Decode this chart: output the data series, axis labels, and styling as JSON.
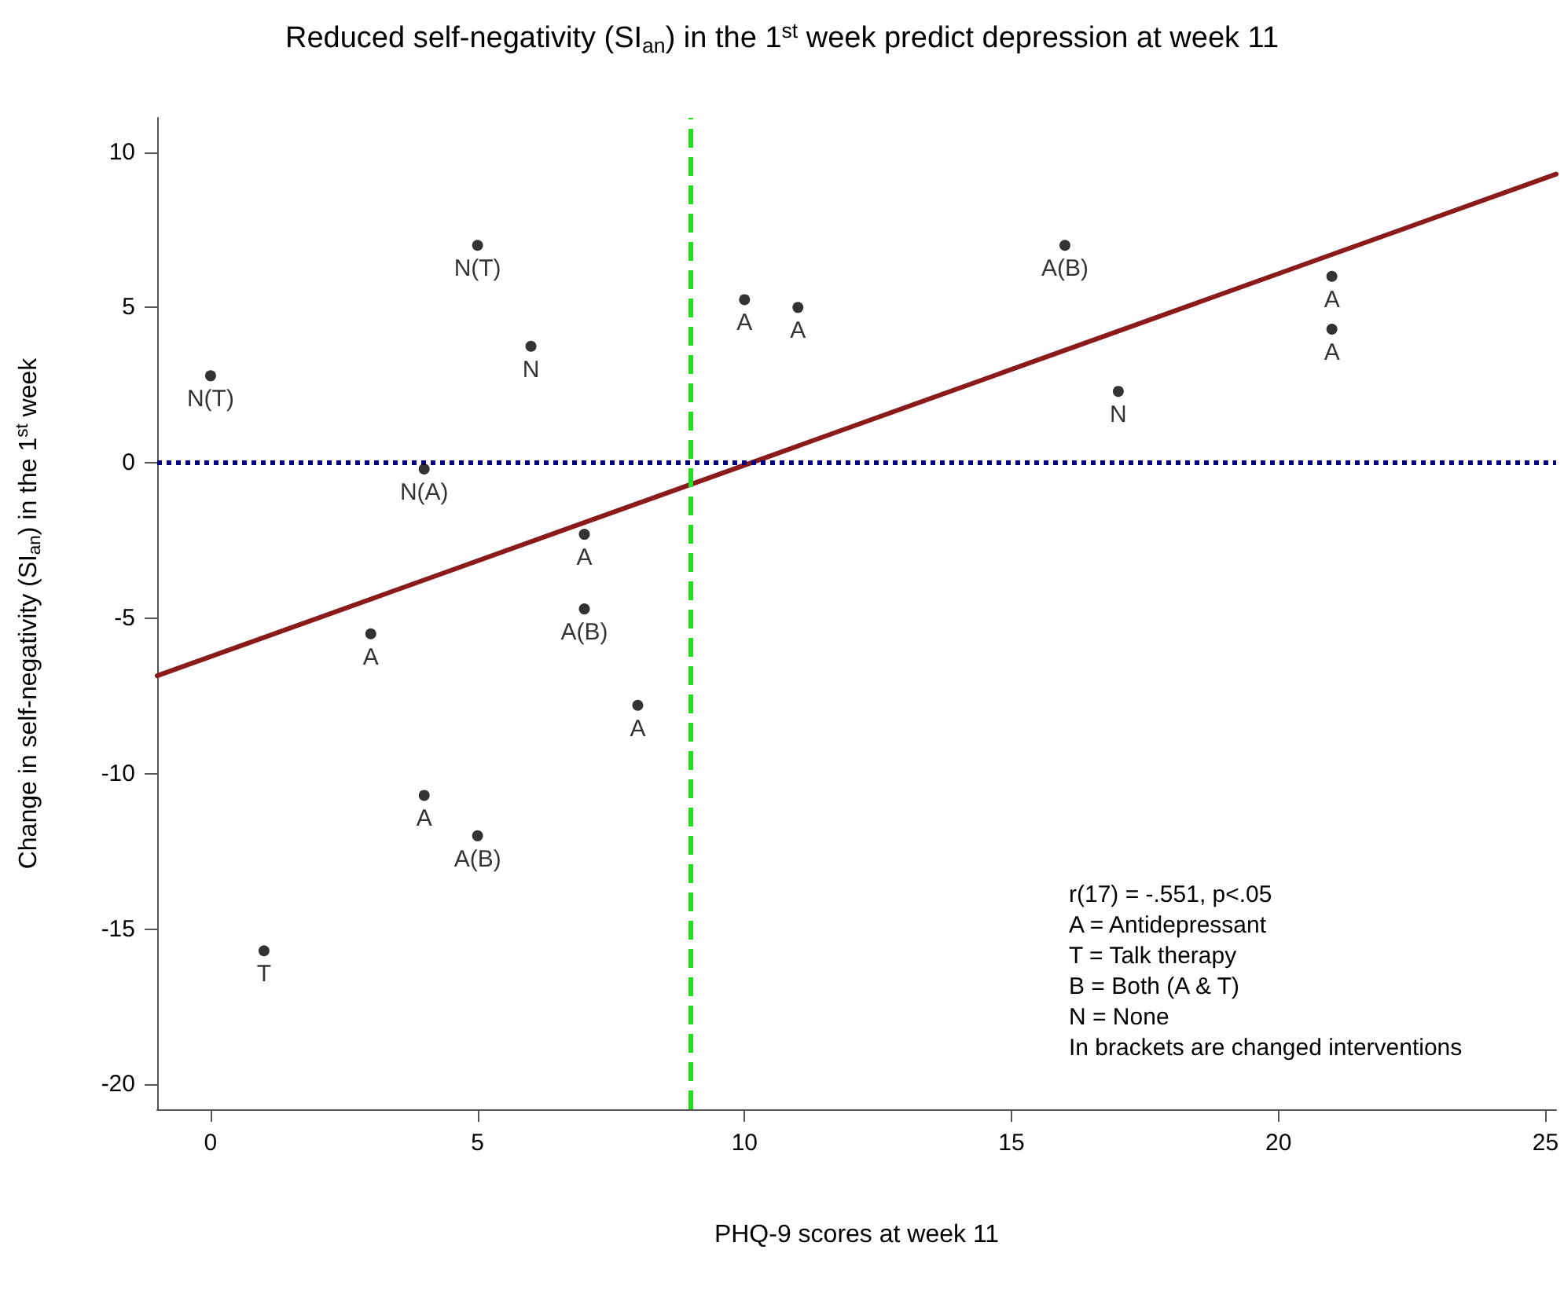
{
  "chart_data": {
    "type": "scatter",
    "title": "Reduced self-negativity (SI$_{an}$) in the 1$^{st}$ week predict depression at week 11",
    "xlabel": "PHQ-9 scores at week 11",
    "ylabel": "Change in self-negativity (SI$_{an}$) in the 1$^{st}$ week",
    "series": [
      {
        "color": "#000000",
        "marker": "circle",
        "x": [
          0,
          1,
          3,
          4,
          4,
          5,
          5,
          6,
          7,
          7,
          8,
          10,
          11,
          16,
          17,
          21,
          21
        ],
        "values": [
          2.8,
          -15.7,
          -5.5,
          -0.2,
          -10.7,
          7.0,
          -12.0,
          3.75,
          -2.3,
          -4.7,
          -7.8,
          5.25,
          5.0,
          7.0,
          2.3,
          6.0,
          4.3
        ],
        "value_labels": [
          "N(T)",
          "T",
          "A",
          "N(A)",
          "A",
          "N(T)",
          "A(B)",
          "N",
          "A",
          "A(B)",
          "A",
          "A",
          "A",
          "A(B)",
          "N",
          "A",
          "A"
        ]
      },
      {
        "type": "line",
        "color": "#8b1a1a",
        "marker": "none",
        "line_style": "solid",
        "x": [
          -1,
          25.2
        ],
        "values": [
          -6.85,
          9.29
        ]
      }
    ],
    "xlim": [
      -1,
      25.2
    ],
    "xticks": [
      0,
      5,
      10,
      15,
      20,
      25
    ],
    "ylim": [
      -20.8,
      11.1
    ],
    "yticks": [
      -20,
      -15,
      -10,
      -5,
      0,
      5,
      10
    ],
    "ref_lines": [
      {
        "axis": "x",
        "value": 9,
        "color": "#22dd22",
        "line_style": "dashed"
      },
      {
        "axis": "y",
        "value": 0,
        "color": "#000080",
        "line_style": "dotted"
      }
    ],
    "annotations": [
      "r(17) = -.551, p<.05",
      "A = Antidepressant",
      "T = Talk therapy",
      "B = Both (A & T)",
      "N = None",
      "In brackets are changed interventions"
    ],
    "grid": false
  }
}
